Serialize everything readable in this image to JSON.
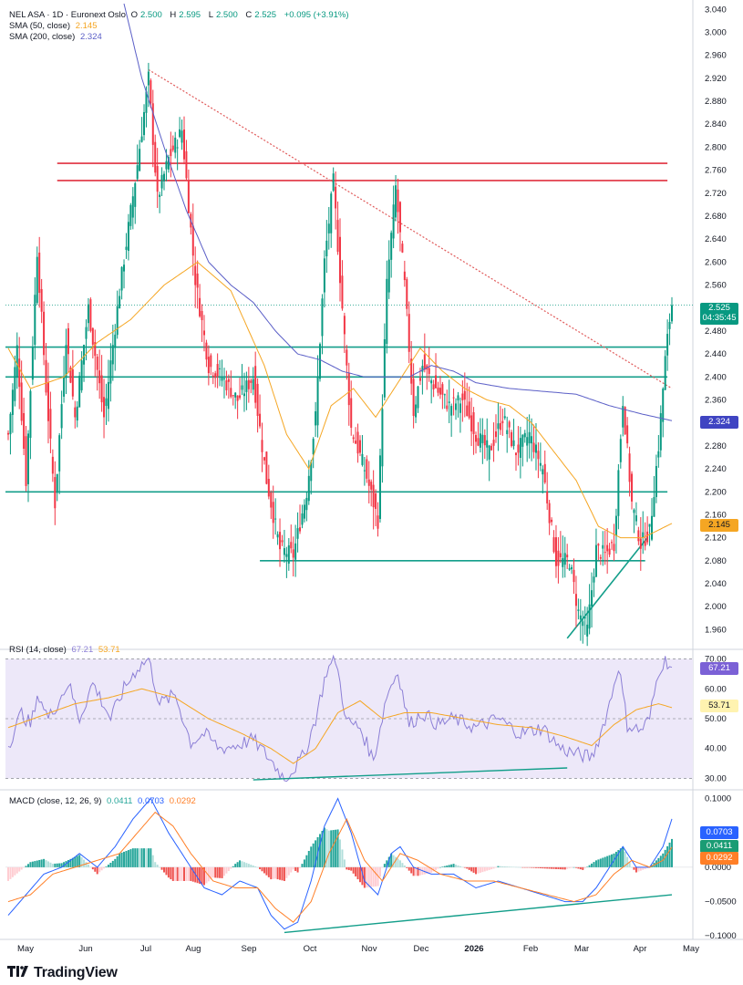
{
  "header": {
    "symbol": "NEL ASA · 1D · Euronext Oslo",
    "open_label": "O",
    "open": "2.500",
    "high_label": "H",
    "high": "2.595",
    "low_label": "L",
    "low": "2.500",
    "close_label": "C",
    "close": "2.525",
    "change": "+0.095 (+3.91%)",
    "sma50_label": "SMA (50, close)",
    "sma50_value": "2.145",
    "sma200_label": "SMA (200, close)",
    "sma200_value": "2.324"
  },
  "badges": {
    "price": "2.525",
    "countdown": "04:35:45",
    "sma200": "2.324",
    "sma50": "2.145",
    "rsi": "67.21",
    "rsi_ma": "53.71",
    "macd": "0.0703",
    "hist": "0.0411",
    "signal": "0.0292"
  },
  "rsi_legend": {
    "label": "RSI (14, close)",
    "rsi": "67.21",
    "ma": "53.71"
  },
  "macd_legend": {
    "label": "MACD (close, 12, 26, 9)",
    "hist": "0.0411",
    "macd": "0.0703",
    "signal": "0.0292"
  },
  "footer": {
    "brand": "TradingView"
  },
  "colors": {
    "up": "#089981",
    "down": "#f23645",
    "sma50": "#f5a623",
    "sma200": "#5b5fc7",
    "resistance": "#e0313f",
    "support": "#139e8a",
    "trendline": "#e05a5a",
    "rsi": "#8c7fd6",
    "rsi_band": "#ede8f9",
    "macd": "#2962ff",
    "signal": "#ff7f27"
  },
  "chart_data": [
    {
      "type": "candlestick",
      "title": "NEL ASA · 1D · Euronext Oslo",
      "y_ticks": [
        "3.040",
        "3.000",
        "2.960",
        "2.920",
        "2.880",
        "2.840",
        "2.800",
        "2.760",
        "2.720",
        "2.680",
        "2.640",
        "2.600",
        "2.560",
        "2.520",
        "2.480",
        "2.440",
        "2.400",
        "2.360",
        "2.320",
        "2.280",
        "2.240",
        "2.200",
        "2.160",
        "2.120",
        "2.080",
        "2.040",
        "2.000",
        "1.960"
      ],
      "ylim": [
        1.94,
        3.05
      ],
      "x_ticks": [
        "May",
        "Jun",
        "Jul",
        "Aug",
        "Sep",
        "Oct",
        "Nov",
        "Dec",
        "2026",
        "Feb",
        "Mar",
        "Apr",
        "May"
      ],
      "last_close": 2.525,
      "horizontal_levels": [
        {
          "name": "resistance-upper",
          "value": 2.772
        },
        {
          "name": "resistance-lower",
          "value": 2.742
        },
        {
          "name": "support-upper",
          "value": 2.452
        },
        {
          "name": "support-mid",
          "value": 2.4
        },
        {
          "name": "support-low",
          "value": 2.2
        },
        {
          "name": "support-bottom",
          "value": 2.08
        }
      ],
      "price_anchors": [
        [
          0,
          2.3
        ],
        [
          4,
          2.45
        ],
        [
          8,
          2.22
        ],
        [
          13,
          2.62
        ],
        [
          17,
          2.38
        ],
        [
          21,
          2.18
        ],
        [
          26,
          2.47
        ],
        [
          30,
          2.33
        ],
        [
          36,
          2.52
        ],
        [
          43,
          2.33
        ],
        [
          50,
          2.55
        ],
        [
          58,
          2.77
        ],
        [
          63,
          2.92
        ],
        [
          67,
          2.71
        ],
        [
          72,
          2.78
        ],
        [
          78,
          2.83
        ],
        [
          84,
          2.57
        ],
        [
          90,
          2.42
        ],
        [
          96,
          2.4
        ],
        [
          103,
          2.36
        ],
        [
          110,
          2.4
        ],
        [
          116,
          2.22
        ],
        [
          122,
          2.1
        ],
        [
          128,
          2.09
        ],
        [
          134,
          2.2
        ],
        [
          138,
          2.33
        ],
        [
          142,
          2.6
        ],
        [
          146,
          2.74
        ],
        [
          150,
          2.52
        ],
        [
          154,
          2.31
        ],
        [
          160,
          2.24
        ],
        [
          166,
          2.15
        ],
        [
          170,
          2.56
        ],
        [
          174,
          2.73
        ],
        [
          178,
          2.56
        ],
        [
          182,
          2.34
        ],
        [
          186,
          2.42
        ],
        [
          192,
          2.38
        ],
        [
          198,
          2.35
        ],
        [
          204,
          2.36
        ],
        [
          210,
          2.3
        ],
        [
          216,
          2.27
        ],
        [
          222,
          2.33
        ],
        [
          228,
          2.27
        ],
        [
          234,
          2.3
        ],
        [
          240,
          2.24
        ],
        [
          246,
          2.08
        ],
        [
          252,
          2.08
        ],
        [
          256,
          1.99
        ],
        [
          260,
          1.96
        ],
        [
          264,
          2.1
        ],
        [
          268,
          2.09
        ],
        [
          272,
          2.11
        ],
        [
          276,
          2.36
        ],
        [
          280,
          2.18
        ],
        [
          284,
          2.11
        ],
        [
          288,
          2.13
        ],
        [
          292,
          2.28
        ],
        [
          295,
          2.43
        ],
        [
          297,
          2.5
        ],
        [
          298,
          2.525
        ]
      ],
      "sma50_anchors": [
        [
          0,
          2.45
        ],
        [
          10,
          2.38
        ],
        [
          25,
          2.4
        ],
        [
          40,
          2.46
        ],
        [
          55,
          2.5
        ],
        [
          70,
          2.56
        ],
        [
          85,
          2.6
        ],
        [
          100,
          2.55
        ],
        [
          115,
          2.42
        ],
        [
          125,
          2.3
        ],
        [
          135,
          2.24
        ],
        [
          145,
          2.35
        ],
        [
          155,
          2.38
        ],
        [
          165,
          2.33
        ],
        [
          175,
          2.39
        ],
        [
          185,
          2.45
        ],
        [
          195,
          2.41
        ],
        [
          205,
          2.38
        ],
        [
          215,
          2.36
        ],
        [
          225,
          2.35
        ],
        [
          235,
          2.32
        ],
        [
          245,
          2.27
        ],
        [
          255,
          2.22
        ],
        [
          265,
          2.14
        ],
        [
          275,
          2.12
        ],
        [
          285,
          2.12
        ],
        [
          298,
          2.145
        ]
      ],
      "sma200_anchors": [
        [
          52,
          3.05
        ],
        [
          60,
          2.92
        ],
        [
          70,
          2.8
        ],
        [
          80,
          2.69
        ],
        [
          90,
          2.6
        ],
        [
          100,
          2.56
        ],
        [
          110,
          2.53
        ],
        [
          120,
          2.48
        ],
        [
          130,
          2.44
        ],
        [
          140,
          2.43
        ],
        [
          150,
          2.41
        ],
        [
          160,
          2.4
        ],
        [
          170,
          2.4
        ],
        [
          180,
          2.4
        ],
        [
          190,
          2.42
        ],
        [
          200,
          2.41
        ],
        [
          210,
          2.39
        ],
        [
          225,
          2.38
        ],
        [
          240,
          2.375
        ],
        [
          255,
          2.37
        ],
        [
          270,
          2.35
        ],
        [
          285,
          2.335
        ],
        [
          298,
          2.324
        ]
      ]
    },
    {
      "type": "line",
      "title": "RSI (14, close)",
      "y_ticks": [
        "70.00",
        "60.00",
        "50.00",
        "40.00",
        "30.00"
      ],
      "ylim": [
        28,
        72
      ],
      "bands": [
        30,
        50,
        70
      ],
      "series": [
        {
          "name": "RSI",
          "last": 67.21,
          "anchors": [
            [
              0,
              41
            ],
            [
              6,
              52
            ],
            [
              10,
              48
            ],
            [
              14,
              58
            ],
            [
              18,
              50
            ],
            [
              22,
              55
            ],
            [
              27,
              62
            ],
            [
              32,
              50
            ],
            [
              38,
              62
            ],
            [
              46,
              50
            ],
            [
              52,
              60
            ],
            [
              58,
              67
            ],
            [
              63,
              70
            ],
            [
              68,
              55
            ],
            [
              75,
              58
            ],
            [
              82,
              42
            ],
            [
              88,
              45
            ],
            [
              95,
              40
            ],
            [
              102,
              41
            ],
            [
              110,
              43
            ],
            [
              118,
              36
            ],
            [
              124,
              30
            ],
            [
              128,
              33
            ],
            [
              133,
              38
            ],
            [
              138,
              50
            ],
            [
              143,
              66
            ],
            [
              147,
              70
            ],
            [
              152,
              49
            ],
            [
              158,
              47
            ],
            [
              164,
              36
            ],
            [
              170,
              58
            ],
            [
              175,
              66
            ],
            [
              180,
              48
            ],
            [
              186,
              52
            ],
            [
              193,
              48
            ],
            [
              200,
              50
            ],
            [
              210,
              47
            ],
            [
              220,
              50
            ],
            [
              230,
              45
            ],
            [
              240,
              47
            ],
            [
              248,
              40
            ],
            [
              256,
              38
            ],
            [
              262,
              37
            ],
            [
              266,
              45
            ],
            [
              270,
              55
            ],
            [
              274,
              68
            ],
            [
              278,
              48
            ],
            [
              284,
              46
            ],
            [
              288,
              50
            ],
            [
              292,
              66
            ],
            [
              295,
              70
            ],
            [
              298,
              67.21
            ]
          ]
        },
        {
          "name": "RSI MA",
          "last": 53.71,
          "anchors": [
            [
              0,
              47
            ],
            [
              15,
              51
            ],
            [
              30,
              55
            ],
            [
              45,
              57
            ],
            [
              60,
              60
            ],
            [
              75,
              57
            ],
            [
              90,
              50
            ],
            [
              105,
              45
            ],
            [
              118,
              40
            ],
            [
              128,
              35
            ],
            [
              138,
              40
            ],
            [
              148,
              52
            ],
            [
              158,
              56
            ],
            [
              168,
              50
            ],
            [
              178,
              52
            ],
            [
              190,
              52
            ],
            [
              205,
              50
            ],
            [
              220,
              48
            ],
            [
              235,
              47
            ],
            [
              250,
              44
            ],
            [
              262,
              41
            ],
            [
              272,
              48
            ],
            [
              282,
              53
            ],
            [
              292,
              55
            ],
            [
              298,
              53.71
            ]
          ]
        }
      ]
    },
    {
      "type": "line",
      "title": "MACD (close, 12, 26, 9)",
      "y_ticks": [
        "0.1000",
        "0.0500",
        "0.0000",
        "−0.0500",
        "−0.1000"
      ],
      "ylim": [
        -0.105,
        0.11
      ],
      "series": [
        {
          "name": "MACD",
          "last": 0.0703,
          "anchors": [
            [
              0,
              -0.07
            ],
            [
              8,
              -0.04
            ],
            [
              16,
              -0.01
            ],
            [
              24,
              0.0
            ],
            [
              32,
              0.02
            ],
            [
              40,
              0.0
            ],
            [
              48,
              0.03
            ],
            [
              56,
              0.07
            ],
            [
              64,
              0.1
            ],
            [
              72,
              0.05
            ],
            [
              80,
              0.01
            ],
            [
              88,
              -0.03
            ],
            [
              96,
              -0.04
            ],
            [
              104,
              -0.02
            ],
            [
              112,
              -0.03
            ],
            [
              118,
              -0.07
            ],
            [
              124,
              -0.09
            ],
            [
              130,
              -0.08
            ],
            [
              136,
              -0.02
            ],
            [
              142,
              0.06
            ],
            [
              148,
              0.1
            ],
            [
              154,
              0.05
            ],
            [
              160,
              -0.02
            ],
            [
              166,
              -0.04
            ],
            [
              172,
              0.02
            ],
            [
              176,
              0.03
            ],
            [
              182,
              0.0
            ],
            [
              190,
              -0.01
            ],
            [
              200,
              -0.01
            ],
            [
              210,
              -0.03
            ],
            [
              220,
              -0.02
            ],
            [
              230,
              -0.03
            ],
            [
              240,
              -0.04
            ],
            [
              250,
              -0.05
            ],
            [
              258,
              -0.05
            ],
            [
              264,
              -0.03
            ],
            [
              270,
              0.0
            ],
            [
              276,
              0.03
            ],
            [
              282,
              0.0
            ],
            [
              288,
              0.0
            ],
            [
              294,
              0.03
            ],
            [
              298,
              0.0703
            ]
          ]
        },
        {
          "name": "Signal",
          "last": 0.0292,
          "anchors": [
            [
              0,
              -0.05
            ],
            [
              10,
              -0.04
            ],
            [
              20,
              -0.01
            ],
            [
              30,
              0.0
            ],
            [
              40,
              0.01
            ],
            [
              50,
              0.02
            ],
            [
              58,
              0.05
            ],
            [
              66,
              0.08
            ],
            [
              74,
              0.06
            ],
            [
              82,
              0.02
            ],
            [
              92,
              -0.02
            ],
            [
              102,
              -0.03
            ],
            [
              112,
              -0.03
            ],
            [
              120,
              -0.06
            ],
            [
              128,
              -0.08
            ],
            [
              136,
              -0.05
            ],
            [
              144,
              0.02
            ],
            [
              152,
              0.07
            ],
            [
              160,
              0.01
            ],
            [
              168,
              -0.02
            ],
            [
              176,
              0.02
            ],
            [
              184,
              0.01
            ],
            [
              194,
              -0.01
            ],
            [
              206,
              -0.02
            ],
            [
              218,
              -0.02
            ],
            [
              230,
              -0.03
            ],
            [
              242,
              -0.04
            ],
            [
              254,
              -0.05
            ],
            [
              264,
              -0.04
            ],
            [
              272,
              -0.01
            ],
            [
              280,
              0.01
            ],
            [
              288,
              0.0
            ],
            [
              294,
              0.01
            ],
            [
              298,
              0.0292
            ]
          ]
        },
        {
          "name": "Histogram",
          "type": "bar",
          "last": 0.0411
        }
      ]
    }
  ]
}
